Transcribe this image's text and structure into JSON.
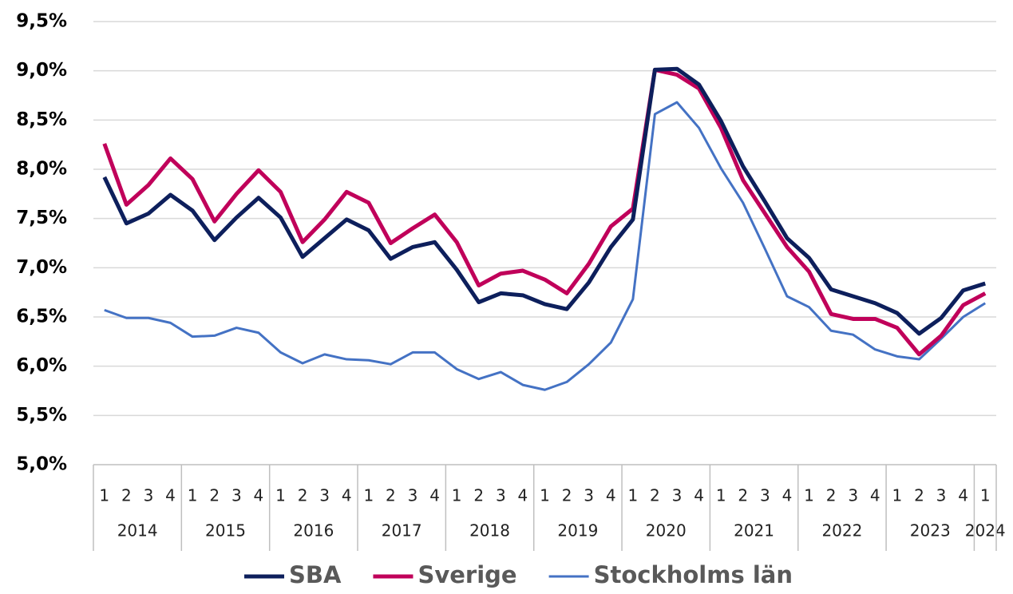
{
  "chart_data": {
    "type": "line",
    "categories": [
      "1",
      "2",
      "3",
      "4",
      "1",
      "2",
      "3",
      "4",
      "1",
      "2",
      "3",
      "4",
      "1",
      "2",
      "3",
      "4",
      "1",
      "2",
      "3",
      "4",
      "1",
      "2",
      "3",
      "4",
      "1",
      "2",
      "3",
      "4",
      "1",
      "2",
      "3",
      "4",
      "1",
      "2",
      "3",
      "4",
      "1",
      "2",
      "3",
      "4",
      "1"
    ],
    "years": [
      "2014",
      "2015",
      "2016",
      "2017",
      "2018",
      "2019",
      "2020",
      "2021",
      "2022",
      "2023",
      "2024"
    ],
    "series": [
      {
        "name": "SBA",
        "color": "#0d1f5c",
        "values": [
          7.92,
          7.45,
          7.55,
          7.74,
          7.58,
          7.28,
          7.51,
          7.71,
          7.51,
          7.11,
          7.3,
          7.49,
          7.38,
          7.09,
          7.21,
          7.26,
          6.98,
          6.65,
          6.74,
          6.72,
          6.63,
          6.58,
          6.85,
          7.21,
          7.49,
          9.01,
          9.02,
          8.86,
          8.49,
          8.03,
          7.67,
          7.3,
          7.1,
          6.78,
          6.71,
          6.64,
          6.54,
          6.33,
          6.49,
          6.77,
          6.84
        ]
      },
      {
        "name": "Sverige",
        "color": "#c0005a",
        "values": [
          8.26,
          7.64,
          7.84,
          8.11,
          7.9,
          7.47,
          7.75,
          7.99,
          7.77,
          7.26,
          7.49,
          7.77,
          7.66,
          7.25,
          7.4,
          7.54,
          7.26,
          6.82,
          6.94,
          6.97,
          6.88,
          6.74,
          7.04,
          7.42,
          7.6,
          9.01,
          8.96,
          8.82,
          8.42,
          7.89,
          7.55,
          7.21,
          6.96,
          6.53,
          6.48,
          6.48,
          6.39,
          6.12,
          6.31,
          6.62,
          6.74
        ]
      },
      {
        "name": "Stockholms län",
        "color": "#4472c4",
        "values": [
          6.57,
          6.49,
          6.49,
          6.44,
          6.3,
          6.31,
          6.39,
          6.34,
          6.14,
          6.03,
          6.12,
          6.07,
          6.06,
          6.02,
          6.14,
          6.14,
          5.97,
          5.87,
          5.94,
          5.81,
          5.76,
          5.84,
          6.02,
          6.24,
          6.68,
          8.56,
          8.68,
          8.42,
          8.01,
          7.66,
          7.19,
          6.71,
          6.6,
          6.36,
          6.32,
          6.17,
          6.1,
          6.07,
          6.28,
          6.5,
          6.64
        ]
      }
    ],
    "ylim": [
      5.0,
      9.5
    ],
    "yticks": [
      {
        "value": 5.0,
        "label": "5,0%"
      },
      {
        "value": 5.5,
        "label": "5,5%"
      },
      {
        "value": 6.0,
        "label": "6,0%"
      },
      {
        "value": 6.5,
        "label": "6,5%"
      },
      {
        "value": 7.0,
        "label": "7,0%"
      },
      {
        "value": 7.5,
        "label": "7,5%"
      },
      {
        "value": 8.0,
        "label": "8,0%"
      },
      {
        "value": 8.5,
        "label": "8,5%"
      },
      {
        "value": 9.0,
        "label": "9,0%"
      },
      {
        "value": 9.5,
        "label": "9,5%"
      }
    ],
    "grid": true,
    "legend": "bottom"
  }
}
